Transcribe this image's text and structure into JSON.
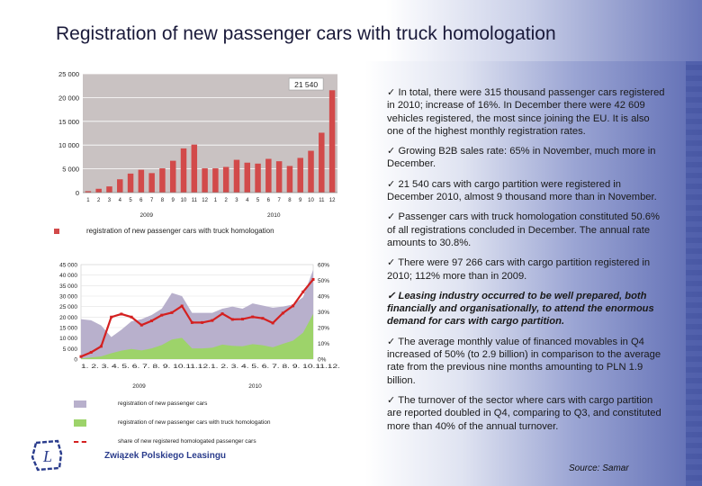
{
  "title": "Registration of new passenger cars with truck homologation",
  "chart_data": [
    {
      "type": "bar",
      "title": "registration of new passenger cars with truck homologation",
      "year_labels": [
        "2009",
        "2010"
      ],
      "categories": [
        "1",
        "2",
        "3",
        "4",
        "5",
        "6",
        "7",
        "8",
        "9",
        "10",
        "11",
        "12",
        "1",
        "2",
        "3",
        "4",
        "5",
        "6",
        "7",
        "8",
        "9",
        "10",
        "11",
        "12"
      ],
      "values": [
        300,
        800,
        1300,
        2800,
        4000,
        4800,
        4100,
        5100,
        6700,
        9300,
        10100,
        5100,
        5100,
        5400,
        6900,
        6300,
        6100,
        7100,
        6600,
        5600,
        7300,
        8800,
        12600,
        21540
      ],
      "value_label": "21 540",
      "ylim": [
        0,
        25000
      ],
      "yticks": [
        "25 000",
        "20 000",
        "15 000",
        "10 000",
        "5 000",
        "0"
      ],
      "ytick_values": [
        25000,
        20000,
        15000,
        10000,
        5000,
        0
      ],
      "bar_color": "#d24a4a",
      "plot_bg": "#c9c2c2"
    },
    {
      "type": "area",
      "year_labels": [
        "2009",
        "2010"
      ],
      "categories": [
        "1.",
        "2.",
        "3.",
        "4.",
        "5.",
        "6.",
        "7.",
        "8.",
        "9.",
        "10.",
        "11.",
        "12.",
        "1.",
        "2.",
        "3.",
        "4.",
        "5.",
        "6.",
        "7.",
        "8.",
        "9.",
        "10.",
        "11.",
        "12."
      ],
      "x_axis_text": "1. 2. 3. 4. 5. 6. 7. 8. 9. 10.11.12.1. 2. 3. 4. 5. 6. 7. 8. 9. 10.11.12.",
      "series": [
        {
          "name": "registration of new passenger cars",
          "color": "#b8b0cc",
          "values": [
            19000,
            18500,
            16000,
            10500,
            14000,
            18000,
            19000,
            21000,
            24000,
            31500,
            30000,
            22000,
            22000,
            22000,
            24000,
            25000,
            24000,
            26500,
            25500,
            24500,
            25000,
            26000,
            29500,
            42600
          ]
        },
        {
          "name": "registration of new passenger cars with truck homologation",
          "color": "#9dd36a",
          "values": [
            300,
            800,
            1300,
            2800,
            4000,
            4800,
            4100,
            5100,
            6700,
            9300,
            10100,
            5100,
            5100,
            5400,
            6900,
            6300,
            6100,
            7100,
            6600,
            5600,
            7300,
            8800,
            12600,
            21540
          ]
        },
        {
          "name": "share of new registered homologated passenger cars",
          "color": "#d42020",
          "axis": "right",
          "values": [
            1.6,
            4.3,
            8.1,
            26.7,
            28.6,
            26.7,
            21.6,
            24.3,
            27.9,
            29.5,
            33.7,
            23.2,
            23.2,
            24.5,
            28.8,
            25.2,
            25.4,
            26.8,
            25.9,
            22.9,
            29.2,
            33.8,
            42.7,
            50.6
          ]
        }
      ],
      "ylim": [
        0,
        45000
      ],
      "yticks": [
        "45 000",
        "40 000",
        "35 000",
        "30 000",
        "25 000",
        "20 000",
        "15 000",
        "10 000",
        "5 000",
        "0"
      ],
      "ytick_values": [
        45000,
        40000,
        35000,
        30000,
        25000,
        20000,
        15000,
        10000,
        5000,
        0
      ],
      "y2lim": [
        0,
        60
      ],
      "y2ticks": [
        "60%",
        "50%",
        "40%",
        "30%",
        "20%",
        "10%",
        "0%"
      ],
      "y2tick_values": [
        60,
        50,
        40,
        30,
        20,
        10,
        0
      ]
    }
  ],
  "logo_text": "Związek Polskiego Leasingu",
  "bullets": [
    {
      "text": "✓  In total, there were 315 thousand passenger cars registered in 2010; increase of 16%. In December there were 42 609 vehicles registered, the most since joining the EU. It is also one of the highest monthly registration rates.",
      "emph": false
    },
    {
      "text": "✓  Growing B2B sales rate: 65% in November, much more in December.",
      "emph": false
    },
    {
      "text": "✓  21 540 cars with cargo partition were registered in December 2010, almost 9 thousand more than in November.",
      "emph": false
    },
    {
      "text": "✓  Passenger cars with truck homologation constituted 50.6% of all registrations concluded in December. The annual rate amounts to 30.8%.",
      "emph": false
    },
    {
      "text": "✓  There were 97 266 cars with cargo partition registered in 2010; 112% more than in 2009.",
      "emph": false
    },
    {
      "text": "✓  Leasing industry occurred to be well prepared, both financially and organisationally, to attend the enormous demand for cars with cargo partition.",
      "emph": true
    },
    {
      "text": "✓  The average monthly value of financed movables in Q4 increased of 50% (to 2.9 billion) in comparison to the average rate from the previous nine months amounting to PLN 1.9 billion.",
      "emph": false
    },
    {
      "text": "✓  The turnover of the sector where cars with cargo partition are reported doubled in Q4, comparing to Q3, and constituted more than 40% of the annual turnover.",
      "emph": false
    }
  ],
  "source": "Source: Samar"
}
